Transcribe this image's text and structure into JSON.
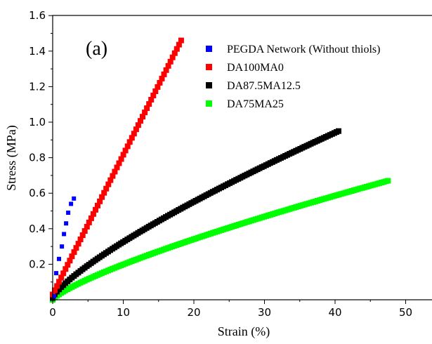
{
  "chart_data": {
    "type": "scatter",
    "panel_label": "(a)",
    "xlabel": "Strain (%)",
    "ylabel": "Stress (MPa)",
    "xlim": [
      0,
      55
    ],
    "ylim": [
      0,
      1.6
    ],
    "x_ticks": [
      "0",
      "10",
      "20",
      "30",
      "40",
      "50"
    ],
    "y_ticks": [
      "0.2",
      "0.4",
      "0.6",
      "0.8",
      "1.0",
      "1.2",
      "1.4",
      "1.6"
    ],
    "legend_position": "top-right",
    "series": [
      {
        "name": "PEGDA Network (Without thiols)",
        "color": "#0000ff",
        "points": [
          [
            0.2,
            0.02
          ],
          [
            0.5,
            0.15
          ],
          [
            0.9,
            0.23
          ],
          [
            1.3,
            0.3
          ],
          [
            1.6,
            0.37
          ],
          [
            1.9,
            0.43
          ],
          [
            2.2,
            0.49
          ],
          [
            2.6,
            0.54
          ],
          [
            3.0,
            0.57
          ]
        ]
      },
      {
        "name": "DA100MA0",
        "color": "#ff0000",
        "x_range": [
          0,
          18.2
        ],
        "y_at_start": 0.03,
        "y_at_end": 1.46,
        "curve": "linear"
      },
      {
        "name": "DA87.5MA12.5",
        "color": "#000000",
        "x_range": [
          0,
          40.5
        ],
        "y_at_start": 0.01,
        "y_at_end": 0.95,
        "curve": "concave"
      },
      {
        "name": "DA75MA25",
        "color": "#00ff00",
        "x_range": [
          0,
          47.5
        ],
        "y_at_start": 0.0,
        "y_at_end": 0.67,
        "curve": "concave"
      }
    ]
  }
}
